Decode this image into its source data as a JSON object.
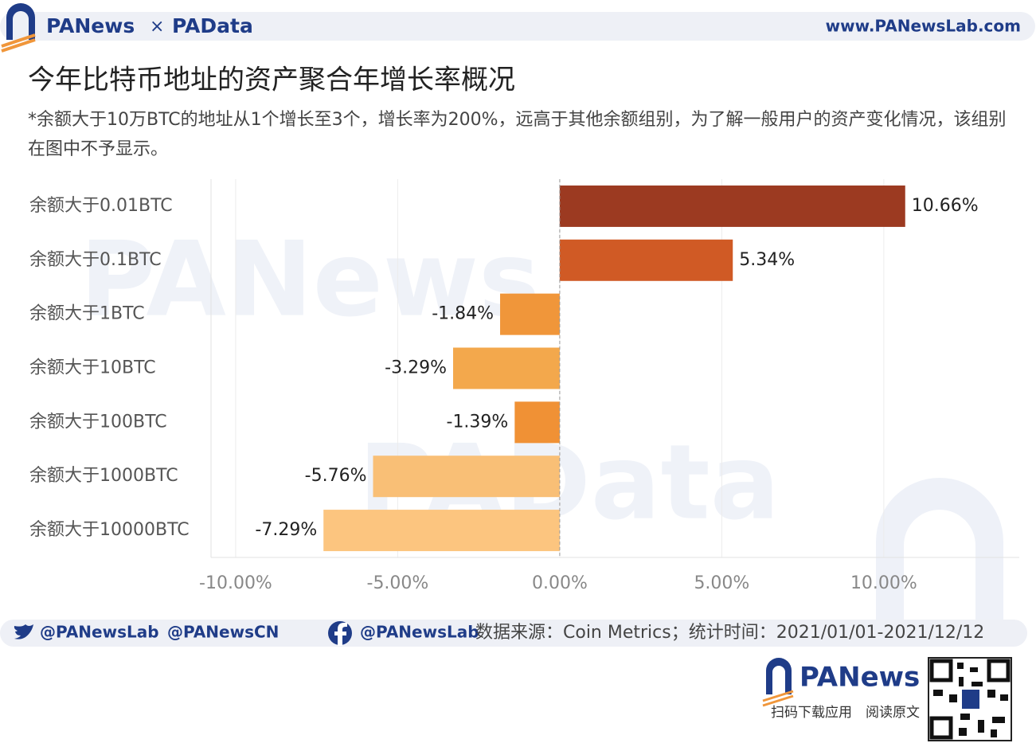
{
  "header": {
    "brand_left": "PANews",
    "separator": "×",
    "brand_right": "PAData",
    "url": "www.PANewsLab.com"
  },
  "watermarks": [
    "PANews",
    "PAData"
  ],
  "chart_data": {
    "type": "barh",
    "title": "今年比特币地址的资产聚合年增长率概况",
    "subtitle": "*余额大于10万BTC的地址从1个增长至3个，增长率为200%，远高于其他余额组别，为了解一般用户的资产变化情况，该组别在图中不予显示。",
    "categories": [
      "余额大于0.01BTC",
      "余额大于0.1BTC",
      "余额大于1BTC",
      "余额大于10BTC",
      "余额大于100BTC",
      "余额大于1000BTC",
      "余额大于10000BTC"
    ],
    "values": [
      10.66,
      5.34,
      -1.84,
      -3.29,
      -1.39,
      -5.76,
      -7.29
    ],
    "value_labels": [
      "10.66%",
      "5.34%",
      "-1.84%",
      "-3.29%",
      "-1.39%",
      "-5.76%",
      "-7.29%"
    ],
    "colors": [
      "#9c3a21",
      "#d05a25",
      "#f0963a",
      "#f3a84c",
      "#f09135",
      "#f9bf76",
      "#fcc57f"
    ],
    "xlim": [
      -10.76,
      14.18
    ],
    "xticks": [
      {
        "value": -10,
        "label": "-10.00%"
      },
      {
        "value": -5,
        "label": "-5.00%"
      },
      {
        "value": 0,
        "label": "0.00%"
      },
      {
        "value": 5,
        "label": "5.00%"
      },
      {
        "value": 10,
        "label": "10.00%"
      }
    ],
    "grid": true
  },
  "footer": {
    "twitter_1": "@PANewsLab",
    "twitter_2": "@PANewsCN",
    "facebook": "@PANewsLab",
    "source": "数据来源：Coin Metrics；统计时间：2021/01/01-2021/12/12",
    "brand": "PANews",
    "qr_caption_1": "扫码下载应用",
    "qr_caption_2": "阅读原文"
  }
}
